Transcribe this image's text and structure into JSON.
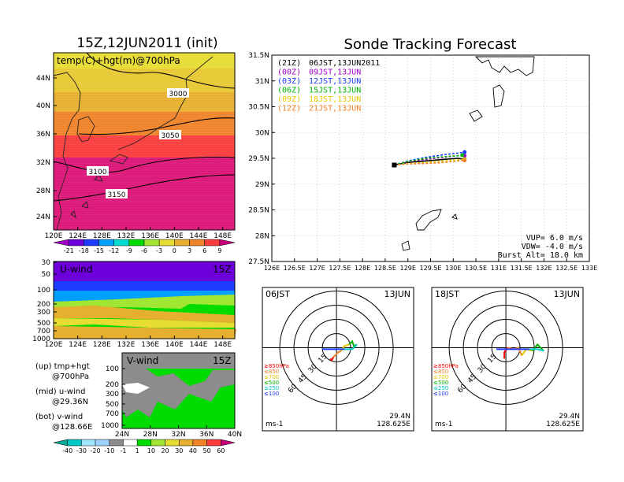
{
  "left": {
    "title": "15Z,12JUN2011 (init)",
    "top_panel": {
      "label": "temp(C)+hgt(m)@700hPa",
      "lat_ticks": [
        "44N",
        "40N",
        "36N",
        "32N",
        "28N",
        "24N"
      ],
      "lon_ticks": [
        "120E",
        "124E",
        "128E",
        "132E",
        "136E",
        "140E",
        "144E",
        "148E"
      ],
      "contour_labels": [
        "3000",
        "3050",
        "3100",
        "3150"
      ],
      "colorbar_labels": [
        "-21",
        "-18",
        "-15",
        "-12",
        "-9",
        "-6",
        "-3",
        "0",
        "3",
        "6",
        "9"
      ],
      "colorbar_colors": [
        "#a000c8",
        "#6e00dc",
        "#1e3cff",
        "#00a0ff",
        "#00dcd2",
        "#00dc00",
        "#a0e632",
        "#e6dc32",
        "#e6af2d",
        "#f08228",
        "#fa3c3c",
        "#c80078"
      ]
    },
    "u_panel": {
      "label": "U-wind",
      "time": "15Z",
      "p_ticks": [
        "30",
        "50",
        "100",
        "200",
        "300",
        "500",
        "700",
        "1000"
      ],
      "lon_ticks": [
        "120E",
        "124E",
        "128E",
        "132E",
        "136E",
        "140E",
        "144E",
        "148E"
      ]
    },
    "v_panel": {
      "label": "V-wind",
      "time": "15Z",
      "p_ticks": [
        "100",
        "200",
        "300",
        "500",
        "700",
        "1000"
      ],
      "lat_ticks": [
        "24N",
        "28N",
        "32N",
        "36N",
        "40N"
      ]
    },
    "legend_lines": [
      {
        "a": "(up) tmp+hgt",
        "b": "@700hPa"
      },
      {
        "a": "(mid) u-wind",
        "b": "@29.36N"
      },
      {
        "a": "(bot) v-wind",
        "b": "@128.66E"
      }
    ],
    "wind_colorbar_labels": [
      "-40",
      "-30",
      "-20",
      "-10",
      "-1",
      "1",
      "10",
      "20",
      "30",
      "40",
      "50",
      "60"
    ],
    "wind_colorbar_colors": [
      "#00aa96",
      "#00c8c8",
      "#a0e6ff",
      "#a0d2ff",
      "#8c8c8c",
      "#ffffff",
      "#00dc00",
      "#a0e632",
      "#e6dc32",
      "#e6af2d",
      "#f08228",
      "#fa3c3c",
      "#c80078"
    ]
  },
  "track": {
    "title": "Sonde Tracking Forecast",
    "lat_ticks": [
      "31.5N",
      "31N",
      "30.5N",
      "30N",
      "29.5N",
      "29N",
      "28.5N",
      "28N",
      "27.5N"
    ],
    "lon_ticks": [
      "126E",
      "126.5E",
      "127E",
      "127.5E",
      "128E",
      "128.5E",
      "129E",
      "129.5E",
      "130E",
      "130.5E",
      "131E",
      "131.5E",
      "132E",
      "132.5E",
      "133E"
    ],
    "launches": [
      {
        "code": "(21Z)",
        "label": "06JST,13JUN2011",
        "color": "#000000"
      },
      {
        "code": "(00Z)",
        "label": "09JST,13JUN",
        "color": "#a000c8"
      },
      {
        "code": "(03Z)",
        "label": "12JST,13JUN",
        "color": "#1e3cff"
      },
      {
        "code": "(06Z)",
        "label": "15JST,13JUN",
        "color": "#00b400"
      },
      {
        "code": "(09Z)",
        "label": "18JST,13JUN",
        "color": "#e6c800"
      },
      {
        "code": "(12Z)",
        "label": "21JST,13JUN",
        "color": "#f08228"
      }
    ],
    "params": [
      "VUP= 6.0 m/s",
      "VDW= -4.0 m/s",
      "Burst Alt= 18.0 km"
    ]
  },
  "hodo_left": {
    "title": "06JST",
    "date": "13JUN",
    "speed_labels": [
      "15",
      "30",
      "45",
      "60"
    ],
    "level_legend": [
      "≥850hPa",
      "≤850",
      "≤700",
      "≤500",
      "≤250",
      "≤100"
    ],
    "level_colors": [
      "#fa0000",
      "#f08228",
      "#e6c800",
      "#00b400",
      "#00c8c8",
      "#1e3cff"
    ],
    "units": "ms-1",
    "lat": "29.4N",
    "lon": "128.625E"
  },
  "hodo_right": {
    "title": "18JST",
    "date": "13JUN",
    "speed_labels": [
      "15",
      "30",
      "45",
      "60"
    ],
    "level_legend": [
      "≥850hPa",
      "≤850",
      "≤700",
      "≤500",
      "≤250",
      "≤100"
    ],
    "level_colors": [
      "#fa0000",
      "#f08228",
      "#e6c800",
      "#00b400",
      "#00c8c8",
      "#1e3cff"
    ],
    "units": "ms-1",
    "lat": "29.4N",
    "lon": "128.625E"
  },
  "chart_data": {
    "type": "line",
    "title": "Sonde Tracking Forecast",
    "xlim": [
      126,
      133
    ],
    "ylim": [
      27.5,
      31.5
    ],
    "series": [
      {
        "name": "(21Z) 06JST,13JUN2011",
        "x": [
          128.7,
          129.0,
          129.4,
          129.8,
          130.1,
          130.25
        ],
        "y": [
          29.37,
          29.42,
          29.45,
          29.48,
          29.5,
          29.48
        ]
      },
      {
        "name": "(00Z) 09JST,13JUN",
        "x": [
          128.7,
          129.0,
          129.4,
          129.8,
          130.1,
          130.25
        ],
        "y": [
          29.37,
          29.43,
          29.48,
          29.52,
          29.55,
          29.55
        ]
      },
      {
        "name": "(03Z) 12JST,13JUN",
        "x": [
          128.7,
          129.0,
          129.4,
          129.8,
          130.1,
          130.25
        ],
        "y": [
          29.37,
          29.45,
          29.52,
          29.57,
          29.6,
          29.62
        ]
      },
      {
        "name": "(06Z) 15JST,13JUN",
        "x": [
          128.7,
          129.0,
          129.4,
          129.8,
          130.1,
          130.2
        ],
        "y": [
          29.37,
          29.44,
          29.5,
          29.53,
          29.55,
          29.56
        ]
      },
      {
        "name": "(09Z) 18JST,13JUN",
        "x": [
          128.7,
          129.0,
          129.4,
          129.8,
          130.1,
          130.25
        ],
        "y": [
          29.37,
          29.4,
          29.42,
          29.45,
          29.47,
          29.48
        ]
      },
      {
        "name": "(12Z) 21JST,13JUN",
        "x": [
          128.7,
          129.0,
          129.4,
          129.8,
          130.1,
          130.25
        ],
        "y": [
          29.37,
          29.39,
          29.4,
          29.42,
          29.45,
          29.46
        ]
      }
    ]
  }
}
